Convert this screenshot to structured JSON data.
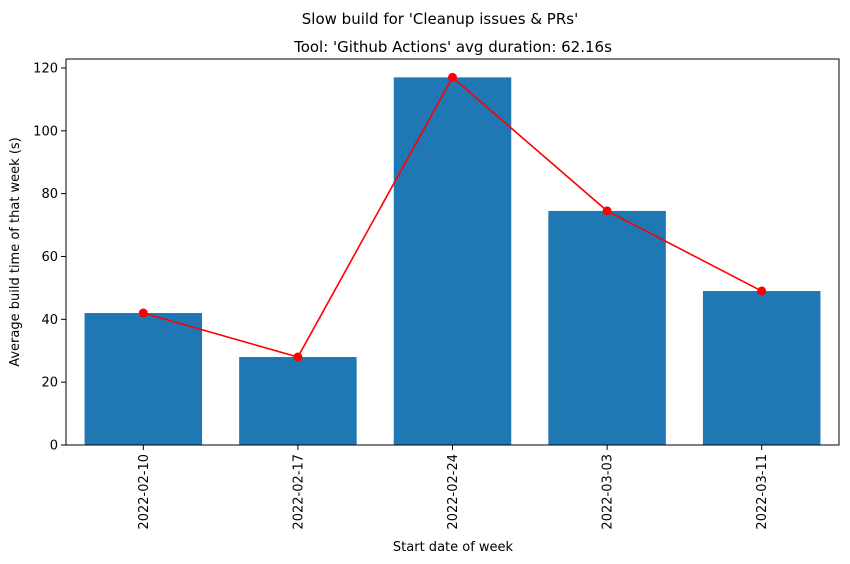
{
  "chart_data": {
    "type": "bar",
    "suptitle": "Slow build for 'Cleanup issues & PRs'",
    "title": "Tool: 'Github Actions' avg duration: 62.16s",
    "xlabel": "Start date of week",
    "ylabel": "Average build time of that week (s)",
    "categories": [
      "2022-02-10",
      "2022-02-17",
      "2022-02-24",
      "2022-03-03",
      "2022-03-11"
    ],
    "values": [
      42,
      28,
      117,
      74.5,
      49
    ],
    "overlay_line": {
      "values": [
        42,
        28,
        117,
        74.5,
        49
      ],
      "color": "#ff0000",
      "marker": "circle"
    },
    "ylim": [
      0,
      122.85
    ],
    "yticks": [
      0,
      20,
      40,
      60,
      80,
      100,
      120
    ],
    "bar_color": "#1f77b4",
    "grid": false,
    "legend": "none"
  }
}
